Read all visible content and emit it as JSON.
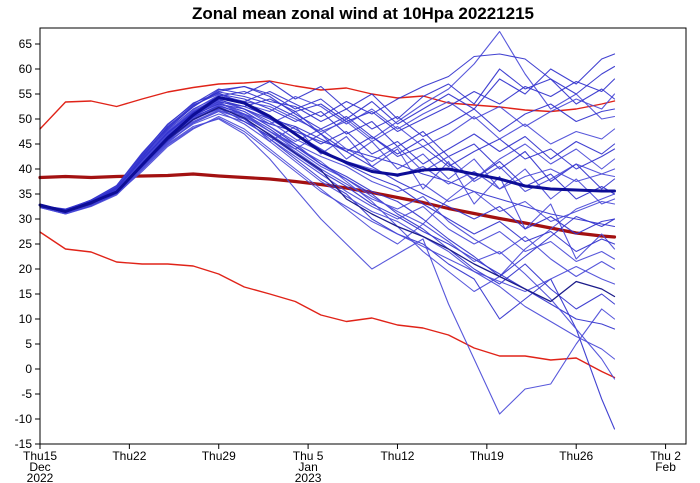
{
  "page_title": "Zonal mean zonal wind at 10Hpa 20221215",
  "chart_data": {
    "type": "line",
    "title": "Zonal mean zonal wind at 10Hpa 20221215",
    "xlabel": "",
    "ylabel": "",
    "grid": false,
    "legend": "none",
    "x_unit": "days since Thu 15 Dec 2022",
    "xlim": [
      0,
      50.6
    ],
    "ylim": [
      -15,
      68.2
    ],
    "y_ticks": [
      65,
      60,
      55,
      50,
      45,
      40,
      35,
      30,
      25,
      20,
      15,
      10,
      5,
      0,
      -5,
      -10,
      -15
    ],
    "x_ticks": [
      {
        "day": 0,
        "label_lines": [
          "Thu15",
          "Dec",
          "2022"
        ]
      },
      {
        "day": 7,
        "label_lines": [
          "Thu22"
        ]
      },
      {
        "day": 14,
        "label_lines": [
          "Thu29"
        ]
      },
      {
        "day": 21,
        "label_lines": [
          "Thu 5",
          "Jan",
          "2023"
        ]
      },
      {
        "day": 28,
        "label_lines": [
          "Thu12"
        ]
      },
      {
        "day": 35,
        "label_lines": [
          "Thu19"
        ]
      },
      {
        "day": 42,
        "label_lines": [
          "Thu26"
        ]
      },
      {
        "day": 49,
        "label_lines": [
          "Thu 2",
          "Feb"
        ]
      }
    ],
    "days": [
      0,
      2,
      4,
      6,
      8,
      10,
      12,
      14,
      16,
      18,
      20,
      22,
      24,
      26,
      28,
      30,
      32,
      34,
      36,
      38,
      40,
      42,
      44,
      45
    ],
    "special_series": [
      {
        "name": "climatology-upper-bound",
        "layer": "back",
        "color": "#e02318",
        "width": 1.4,
        "values": [
          48.0,
          53.4,
          53.6,
          52.5,
          54.0,
          55.4,
          56.3,
          57.0,
          57.2,
          57.6,
          56.6,
          55.8,
          56.2,
          55.0,
          54.2,
          54.6,
          53.2,
          52.8,
          52.4,
          51.8,
          51.5,
          52.0,
          53.0,
          53.6
        ]
      },
      {
        "name": "climatology-lower-bound",
        "layer": "back",
        "color": "#e02318",
        "width": 1.4,
        "values": [
          27.4,
          24.0,
          23.4,
          21.4,
          21.0,
          21.0,
          20.6,
          19.0,
          16.4,
          15.0,
          13.5,
          10.8,
          9.5,
          10.2,
          8.8,
          8.2,
          6.8,
          4.2,
          2.6,
          2.6,
          1.8,
          2.2,
          -0.5,
          -1.7
        ]
      },
      {
        "name": "climatological-mean",
        "layer": "back",
        "color": "#a31111",
        "width": 3.2,
        "values": [
          38.3,
          38.5,
          38.3,
          38.5,
          38.6,
          38.7,
          39.0,
          38.6,
          38.3,
          38.0,
          37.5,
          36.9,
          36.2,
          35.3,
          34.3,
          33.3,
          32.1,
          31.1,
          30.1,
          29.2,
          28.2,
          27.2,
          26.6,
          26.4
        ]
      },
      {
        "name": "control-forecast",
        "layer": "front",
        "color": "#1c1c8a",
        "width": 1.3,
        "values": [
          32.5,
          31.4,
          33.0,
          35.5,
          40.7,
          45.9,
          49.9,
          52.3,
          50.2,
          46.8,
          43.2,
          39.8,
          34.0,
          31.0,
          28.5,
          26.5,
          24.0,
          21.0,
          18.5,
          16.0,
          13.5,
          17.5,
          16.0,
          14.5
        ]
      },
      {
        "name": "ensemble-mean",
        "layer": "front",
        "color": "#0d0d96",
        "width": 3.0,
        "values": [
          32.8,
          31.5,
          33.3,
          35.4,
          40.8,
          46.2,
          50.8,
          54.3,
          53.2,
          50.5,
          47.0,
          43.5,
          41.3,
          39.5,
          38.8,
          39.8,
          40.0,
          39.0,
          38.0,
          36.6,
          36.0,
          35.8,
          35.6,
          35.6
        ]
      }
    ],
    "member_color": "#3232cd",
    "member_color_alt": "#4a4ad8",
    "member_width": 1.1,
    "members": [
      [
        32.5,
        31.6,
        33.4,
        36.0,
        42.0,
        48.0,
        52.5,
        55.5,
        56.5,
        55.0,
        52.0,
        54.0,
        50.0,
        53.5,
        49.0,
        52.0,
        55.0,
        52.0,
        58.0,
        55.0,
        60.0,
        57.0,
        62.0,
        63.0
      ],
      [
        32.4,
        31.2,
        33.0,
        35.5,
        41.0,
        46.5,
        51.0,
        54.0,
        52.0,
        49.0,
        51.5,
        47.0,
        50.0,
        46.0,
        49.5,
        53.0,
        56.0,
        61.0,
        67.5,
        59.0,
        52.0,
        55.0,
        50.0,
        50.5
      ],
      [
        32.6,
        31.8,
        33.6,
        36.2,
        42.5,
        47.5,
        50.5,
        52.5,
        50.0,
        46.0,
        42.0,
        38.0,
        35.0,
        30.0,
        27.0,
        25.0,
        21.0,
        18.0,
        10.0,
        14.0,
        18.0,
        8.0,
        -6.0,
        -12.0
      ],
      [
        32.3,
        31.0,
        32.6,
        35.0,
        40.0,
        45.0,
        48.5,
        50.0,
        47.0,
        42.0,
        36.0,
        30.0,
        25.0,
        20.0,
        23.0,
        26.0,
        13.0,
        2.0,
        -9.0,
        -4.0,
        -3.0,
        5.0,
        12.0,
        10.0
      ],
      [
        32.7,
        31.9,
        33.2,
        35.8,
        41.5,
        47.0,
        51.5,
        53.0,
        51.5,
        48.5,
        45.0,
        41.0,
        38.0,
        35.0,
        31.0,
        28.0,
        24.0,
        20.0,
        17.0,
        21.0,
        16.0,
        12.0,
        15.0,
        13.0
      ],
      [
        32.4,
        31.4,
        33.0,
        35.2,
        40.5,
        45.5,
        49.0,
        51.0,
        49.5,
        46.5,
        44.0,
        47.0,
        42.0,
        45.5,
        40.0,
        43.0,
        38.0,
        42.0,
        36.0,
        40.0,
        34.0,
        38.0,
        33.0,
        34.0
      ],
      [
        32.6,
        31.7,
        33.8,
        36.5,
        43.0,
        49.0,
        53.0,
        56.0,
        55.0,
        57.5,
        54.0,
        56.5,
        52.0,
        55.0,
        50.0,
        54.5,
        57.0,
        53.0,
        60.0,
        56.0,
        58.0,
        53.0,
        56.0,
        54.0
      ],
      [
        32.5,
        31.3,
        32.8,
        35.0,
        39.5,
        44.5,
        48.0,
        50.5,
        48.0,
        44.0,
        40.0,
        36.0,
        32.0,
        28.0,
        25.0,
        29.0,
        34.0,
        38.0,
        42.0,
        45.0,
        41.0,
        44.0,
        40.0,
        42.0
      ],
      [
        32.4,
        31.5,
        33.1,
        35.6,
        41.0,
        46.0,
        50.0,
        52.0,
        51.0,
        49.0,
        47.5,
        45.5,
        44.0,
        42.5,
        41.0,
        39.0,
        37.5,
        35.5,
        34.0,
        32.5,
        31.0,
        30.0,
        29.0,
        28.5
      ],
      [
        32.6,
        31.1,
        32.9,
        35.3,
        40.8,
        46.8,
        50.8,
        53.5,
        50.5,
        45.5,
        48.5,
        43.0,
        46.5,
        40.5,
        44.0,
        36.0,
        41.5,
        33.0,
        38.5,
        28.0,
        33.0,
        22.0,
        27.0,
        24.0
      ],
      [
        32.5,
        31.6,
        33.3,
        36.1,
        42.2,
        47.8,
        52.0,
        54.5,
        53.5,
        55.5,
        53.0,
        50.5,
        53.5,
        51.0,
        54.0,
        56.5,
        58.5,
        62.5,
        63.0,
        62.0,
        58.0,
        55.0,
        59.0,
        60.5
      ],
      [
        32.3,
        31.2,
        32.7,
        35.1,
        40.2,
        45.2,
        49.2,
        51.5,
        49.0,
        45.5,
        41.5,
        37.5,
        34.5,
        31.5,
        29.5,
        26.5,
        23.5,
        19.5,
        16.5,
        12.5,
        9.5,
        6.5,
        4.0,
        2.0
      ],
      [
        32.7,
        32.0,
        33.7,
        36.3,
        42.8,
        48.5,
        52.8,
        55.0,
        54.0,
        52.0,
        49.5,
        51.5,
        47.0,
        49.5,
        44.5,
        47.5,
        42.5,
        45.0,
        40.0,
        43.5,
        37.5,
        41.0,
        36.0,
        38.0
      ],
      [
        32.4,
        31.3,
        32.8,
        35.4,
        40.6,
        45.8,
        49.5,
        51.8,
        50.0,
        47.0,
        43.5,
        40.0,
        37.0,
        34.0,
        32.0,
        34.5,
        29.5,
        26.0,
        23.0,
        26.5,
        22.0,
        18.5,
        21.5,
        20.0
      ],
      [
        32.5,
        31.7,
        33.5,
        36.0,
        41.8,
        47.2,
        51.2,
        53.8,
        52.5,
        50.5,
        48.0,
        45.0,
        47.5,
        43.0,
        45.5,
        41.0,
        44.0,
        47.0,
        43.5,
        46.5,
        42.0,
        45.5,
        43.0,
        45.0
      ],
      [
        32.6,
        31.4,
        33.2,
        35.7,
        41.2,
        46.2,
        50.2,
        52.8,
        50.8,
        47.5,
        44.5,
        41.5,
        37.5,
        33.5,
        28.5,
        23.5,
        19.5,
        15.5,
        18.5,
        24.0,
        28.0,
        32.0,
        34.0,
        35.0
      ],
      [
        32.4,
        31.6,
        33.4,
        36.4,
        42.6,
        48.2,
        52.4,
        55.8,
        56.5,
        54.5,
        51.0,
        48.0,
        50.5,
        46.5,
        43.0,
        46.0,
        41.0,
        38.0,
        41.5,
        36.5,
        39.0,
        34.0,
        36.5,
        35.0
      ],
      [
        32.5,
        31.5,
        33.0,
        35.9,
        41.6,
        47.0,
        51.6,
        54.2,
        53.0,
        51.5,
        54.5,
        52.5,
        49.0,
        52.0,
        48.0,
        51.0,
        53.5,
        50.0,
        52.5,
        48.5,
        51.5,
        54.0,
        52.0,
        55.0
      ],
      [
        32.3,
        31.1,
        32.6,
        35.2,
        40.4,
        45.6,
        49.8,
        52.2,
        49.5,
        46.5,
        43.0,
        39.5,
        36.5,
        33.0,
        30.5,
        27.5,
        25.0,
        22.0,
        19.0,
        16.0,
        13.0,
        10.0,
        9.0,
        8.0
      ],
      [
        32.6,
        31.8,
        33.6,
        36.6,
        42.4,
        47.6,
        51.4,
        53.6,
        52.0,
        49.5,
        46.0,
        43.5,
        41.5,
        40.0,
        38.5,
        40.5,
        37.0,
        39.5,
        36.0,
        38.5,
        40.0,
        37.5,
        39.0,
        38.5
      ],
      [
        32.5,
        31.2,
        32.9,
        35.5,
        40.9,
        46.4,
        50.4,
        52.6,
        51.0,
        48.0,
        44.5,
        41.0,
        38.5,
        35.5,
        33.5,
        30.0,
        26.0,
        22.5,
        18.5,
        22.5,
        26.5,
        30.5,
        28.5,
        30.0
      ],
      [
        32.4,
        31.7,
        33.3,
        36.2,
        42.0,
        47.4,
        51.8,
        54.8,
        53.5,
        52.5,
        50.0,
        47.5,
        49.5,
        45.5,
        48.5,
        44.5,
        47.0,
        50.5,
        46.0,
        49.0,
        45.0,
        47.5,
        46.0,
        48.0
      ],
      [
        32.7,
        31.9,
        33.8,
        36.7,
        43.2,
        48.8,
        53.2,
        55.2,
        53.0,
        50.0,
        47.0,
        44.0,
        41.0,
        38.5,
        36.5,
        33.0,
        30.0,
        27.0,
        29.5,
        25.5,
        27.5,
        23.5,
        26.0,
        25.0
      ],
      [
        32.5,
        31.4,
        33.1,
        35.8,
        41.4,
        46.6,
        50.6,
        53.2,
        51.5,
        48.5,
        45.5,
        48.0,
        44.0,
        41.5,
        44.5,
        39.5,
        42.5,
        37.5,
        40.5,
        35.5,
        38.0,
        41.0,
        39.0,
        40.0
      ],
      [
        32.6,
        31.6,
        33.5,
        36.3,
        42.3,
        48.4,
        52.6,
        55.4,
        54.5,
        53.0,
        50.5,
        47.0,
        43.5,
        40.5,
        37.5,
        35.0,
        32.5,
        30.0,
        32.5,
        28.0,
        30.5,
        27.0,
        29.5,
        30.0
      ],
      [
        32.3,
        31.0,
        32.5,
        34.8,
        39.8,
        44.8,
        48.2,
        50.2,
        47.5,
        43.5,
        39.5,
        35.5,
        32.5,
        29.5,
        27.0,
        24.5,
        22.0,
        19.5,
        17.5,
        15.5,
        18.0,
        20.5,
        18.0,
        17.0
      ],
      [
        32.5,
        31.8,
        33.2,
        36.1,
        41.9,
        47.3,
        51.3,
        54.6,
        55.5,
        53.5,
        52.5,
        49.5,
        52.0,
        48.0,
        50.5,
        46.5,
        49.0,
        52.0,
        47.5,
        51.0,
        53.0,
        49.5,
        51.5,
        52.0
      ],
      [
        32.4,
        31.5,
        33.0,
        35.6,
        41.1,
        46.1,
        50.1,
        52.4,
        50.5,
        47.5,
        45.0,
        42.5,
        40.5,
        37.5,
        35.5,
        37.0,
        33.5,
        35.5,
        31.5,
        33.5,
        29.5,
        31.5,
        33.5,
        33.0
      ],
      [
        32.6,
        31.7,
        33.4,
        36.0,
        41.7,
        47.1,
        51.1,
        53.4,
        52.5,
        54.0,
        51.5,
        53.0,
        49.5,
        51.5,
        47.5,
        50.0,
        52.5,
        55.5,
        53.0,
        56.5,
        54.5,
        57.5,
        55.5,
        58.0
      ],
      [
        32.4,
        31.2,
        32.8,
        35.3,
        40.3,
        45.3,
        49.3,
        51.6,
        50.0,
        46.0,
        42.5,
        39.0,
        35.5,
        32.5,
        30.0,
        32.5,
        28.0,
        25.0,
        27.5,
        23.5,
        25.5,
        21.5,
        23.5,
        22.0
      ],
      [
        32.5,
        31.6,
        33.2,
        35.9,
        41.3,
        46.7,
        50.7,
        53.0,
        52.0,
        50.0,
        48.5,
        46.0,
        43.5,
        46.5,
        42.5,
        44.5,
        40.5,
        43.5,
        46.0,
        42.0,
        44.0,
        40.0,
        42.5,
        44.0
      ],
      [
        32.6,
        31.3,
        33.1,
        35.7,
        41.5,
        46.9,
        50.9,
        53.3,
        51.0,
        47.5,
        44.0,
        40.5,
        38.0,
        34.5,
        31.5,
        29.0,
        25.5,
        21.5,
        23.5,
        19.0,
        14.0,
        8.0,
        2.0,
        -2.0
      ]
    ]
  }
}
